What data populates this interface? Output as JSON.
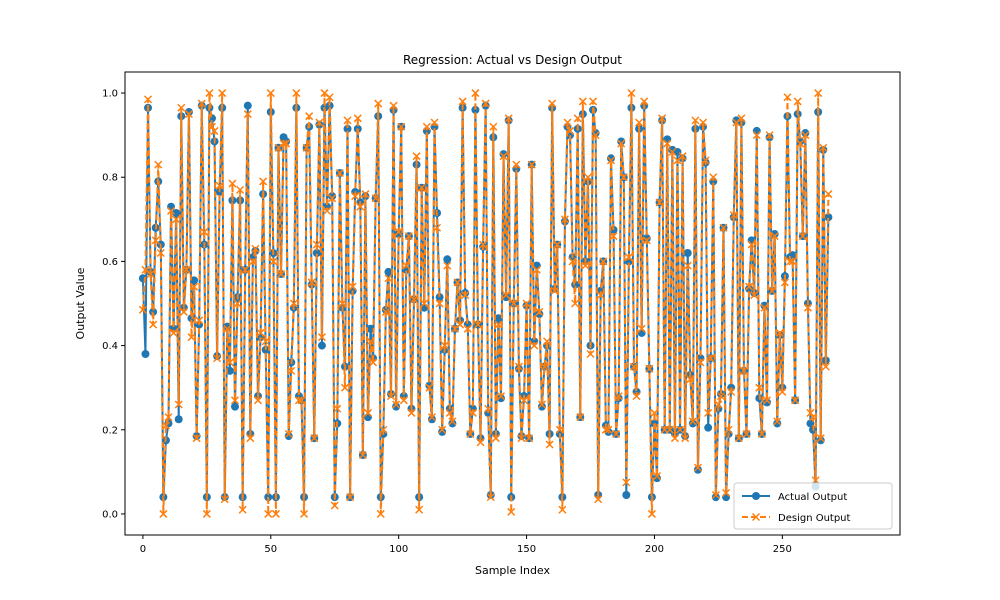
{
  "chart_data": {
    "type": "line",
    "title": "Regression: Actual vs Design Output",
    "xlabel": "Sample Index",
    "ylabel": "Output Value",
    "xlim": [
      -7,
      296
    ],
    "ylim": [
      -0.05,
      1.05
    ],
    "xticks": [
      0,
      50,
      100,
      150,
      200,
      250
    ],
    "yticks": [
      0.0,
      0.2,
      0.4,
      0.6,
      0.8,
      1.0
    ],
    "ytick_labels": [
      "0.0",
      "0.2",
      "0.4",
      "0.6",
      "0.8",
      "1.0"
    ],
    "grid": false,
    "legend_position": "lower-right",
    "series": [
      {
        "name": "Actual Output",
        "color": "#1f77b4",
        "style": "solid-circle",
        "values": [
          0.56,
          0.38,
          0.965,
          0.575,
          0.48,
          0.68,
          0.79,
          0.64,
          0.04,
          0.175,
          0.215,
          0.73,
          0.44,
          0.715,
          0.225,
          0.945,
          0.49,
          0.58,
          0.955,
          0.465,
          0.555,
          0.185,
          0.45,
          0.97,
          0.64,
          0.04,
          0.965,
          0.94,
          0.885,
          0.375,
          0.765,
          0.965,
          0.04,
          0.445,
          0.34,
          0.745,
          0.255,
          0.515,
          0.745,
          0.04,
          0.58,
          0.97,
          0.19,
          0.61,
          0.625,
          0.28,
          0.42,
          0.76,
          0.39,
          0.04,
          0.955,
          0.62,
          0.04,
          0.87,
          0.57,
          0.895,
          0.885,
          0.185,
          0.36,
          0.49,
          0.965,
          0.28,
          0.27,
          0.04,
          0.87,
          0.92,
          0.545,
          0.18,
          0.62,
          0.925,
          0.4,
          0.965,
          0.73,
          0.97,
          0.755,
          0.04,
          0.215,
          0.81,
          0.49,
          0.35,
          0.915,
          0.04,
          0.53,
          0.765,
          0.915,
          0.74,
          0.14,
          0.755,
          0.23,
          0.44,
          0.37,
          0.75,
          0.945,
          0.04,
          0.19,
          0.485,
          0.575,
          0.285,
          0.96,
          0.255,
          0.665,
          0.92,
          0.28,
          0.58,
          0.66,
          0.25,
          0.51,
          0.83,
          0.04,
          0.775,
          0.49,
          0.91,
          0.305,
          0.225,
          0.92,
          0.715,
          0.515,
          0.195,
          0.39,
          0.605,
          0.25,
          0.215,
          0.44,
          0.55,
          0.46,
          0.965,
          0.525,
          0.45,
          0.19,
          0.25,
          0.96,
          0.45,
          0.18,
          0.635,
          0.97,
          0.24,
          0.045,
          0.895,
          0.19,
          0.465,
          0.275,
          0.855,
          0.515,
          0.935,
          0.04,
          0.5,
          0.82,
          0.345,
          0.185,
          0.28,
          0.495,
          0.18,
          0.83,
          0.41,
          0.59,
          0.475,
          0.255,
          0.35,
          0.4,
          0.19,
          0.965,
          0.535,
          0.64,
          0.19,
          0.04,
          0.695,
          0.92,
          0.9,
          0.61,
          0.545,
          0.915,
          0.23,
          0.95,
          0.6,
          0.79,
          0.4,
          0.96,
          0.905,
          0.045,
          0.53,
          0.6,
          0.21,
          0.195,
          0.845,
          0.675,
          0.19,
          0.275,
          0.885,
          0.8,
          0.045,
          0.6,
          0.965,
          0.35,
          0.29,
          0.915,
          0.43,
          0.97,
          0.655,
          0.345,
          0.04,
          0.215,
          0.085,
          0.74,
          0.935,
          0.2,
          0.89,
          0.2,
          0.865,
          0.19,
          0.86,
          0.2,
          0.845,
          0.185,
          0.62,
          0.33,
          0.215,
          0.915,
          0.105,
          0.37,
          0.92,
          0.835,
          0.205,
          0.37,
          0.79,
          0.04,
          0.25,
          0.285,
          0.68,
          0.04,
          0.19,
          0.3,
          0.705,
          0.935,
          0.18,
          0.93,
          0.34,
          0.19,
          0.535,
          0.65,
          0.525,
          0.91,
          0.275,
          0.19,
          0.495,
          0.265,
          0.895,
          0.53,
          0.665,
          0.215,
          0.425,
          0.3,
          0.565,
          0.945,
          0.61,
          0.615,
          0.27,
          0.95,
          0.885,
          0.66,
          0.905,
          0.5,
          0.215,
          0.2,
          0.065,
          0.955,
          0.175,
          0.865,
          0.365,
          0.705
        ]
      },
      {
        "name": "Design Output",
        "color": "#ff7f0e",
        "style": "dashed-x",
        "values": [
          0.485,
          0.58,
          0.985,
          0.57,
          0.45,
          0.65,
          0.83,
          0.62,
          0.0,
          0.21,
          0.23,
          0.72,
          0.43,
          0.7,
          0.26,
          0.965,
          0.48,
          0.58,
          0.95,
          0.42,
          0.54,
          0.18,
          0.46,
          0.975,
          0.67,
          0.0,
          1.0,
          0.92,
          0.91,
          0.37,
          0.78,
          1.0,
          0.035,
          0.44,
          0.36,
          0.785,
          0.27,
          0.5,
          0.77,
          0.01,
          0.58,
          0.95,
          0.18,
          0.6,
          0.63,
          0.27,
          0.43,
          0.79,
          0.41,
          0.0,
          1.0,
          0.6,
          0.0,
          0.87,
          0.57,
          0.88,
          0.88,
          0.19,
          0.34,
          0.5,
          1.0,
          0.27,
          0.27,
          0.0,
          0.87,
          0.945,
          0.55,
          0.18,
          0.64,
          0.93,
          0.42,
          1.0,
          0.72,
          0.99,
          0.75,
          0.02,
          0.25,
          0.81,
          0.5,
          0.3,
          0.935,
          0.04,
          0.54,
          0.755,
          0.94,
          0.73,
          0.14,
          0.76,
          0.24,
          0.41,
          0.36,
          0.75,
          0.975,
          0.0,
          0.2,
          0.48,
          0.56,
          0.28,
          0.97,
          0.26,
          0.67,
          0.92,
          0.27,
          0.59,
          0.66,
          0.24,
          0.51,
          0.85,
          0.01,
          0.775,
          0.5,
          0.92,
          0.3,
          0.23,
          0.93,
          0.68,
          0.5,
          0.2,
          0.4,
          0.59,
          0.24,
          0.22,
          0.44,
          0.55,
          0.45,
          0.98,
          0.52,
          0.44,
          0.19,
          0.24,
          1.0,
          0.45,
          0.17,
          0.64,
          0.975,
          0.25,
          0.04,
          0.92,
          0.18,
          0.45,
          0.28,
          0.85,
          0.52,
          0.94,
          0.005,
          0.5,
          0.83,
          0.35,
          0.18,
          0.27,
          0.5,
          0.18,
          0.83,
          0.4,
          0.58,
          0.48,
          0.26,
          0.35,
          0.41,
          0.165,
          0.975,
          0.53,
          0.64,
          0.2,
          0.01,
          0.7,
          0.93,
          0.91,
          0.6,
          0.5,
          0.94,
          0.23,
          0.98,
          0.59,
          0.8,
          0.38,
          0.98,
          0.9,
          0.035,
          0.52,
          0.6,
          0.2,
          0.2,
          0.84,
          0.66,
          0.19,
          0.28,
          0.88,
          0.8,
          0.075,
          0.61,
          1.0,
          0.35,
          0.28,
          0.93,
          0.44,
          0.98,
          0.65,
          0.345,
          0.0,
          0.24,
          0.09,
          0.74,
          0.94,
          0.2,
          0.88,
          0.2,
          0.86,
          0.18,
          0.84,
          0.2,
          0.85,
          0.18,
          0.59,
          0.32,
          0.22,
          0.935,
          0.11,
          0.36,
          0.93,
          0.84,
          0.24,
          0.37,
          0.8,
          0.045,
          0.26,
          0.28,
          0.68,
          0.05,
          0.2,
          0.29,
          0.71,
          0.93,
          0.18,
          0.94,
          0.34,
          0.19,
          0.54,
          0.64,
          0.52,
          0.9,
          0.3,
          0.19,
          0.49,
          0.27,
          0.9,
          0.53,
          0.66,
          0.22,
          0.43,
          0.29,
          0.55,
          0.99,
          0.6,
          0.6,
          0.27,
          0.98,
          0.88,
          0.66,
          0.9,
          0.49,
          0.24,
          0.23,
          0.08,
          1.0,
          0.18,
          0.87,
          0.35,
          0.76
        ]
      }
    ]
  }
}
